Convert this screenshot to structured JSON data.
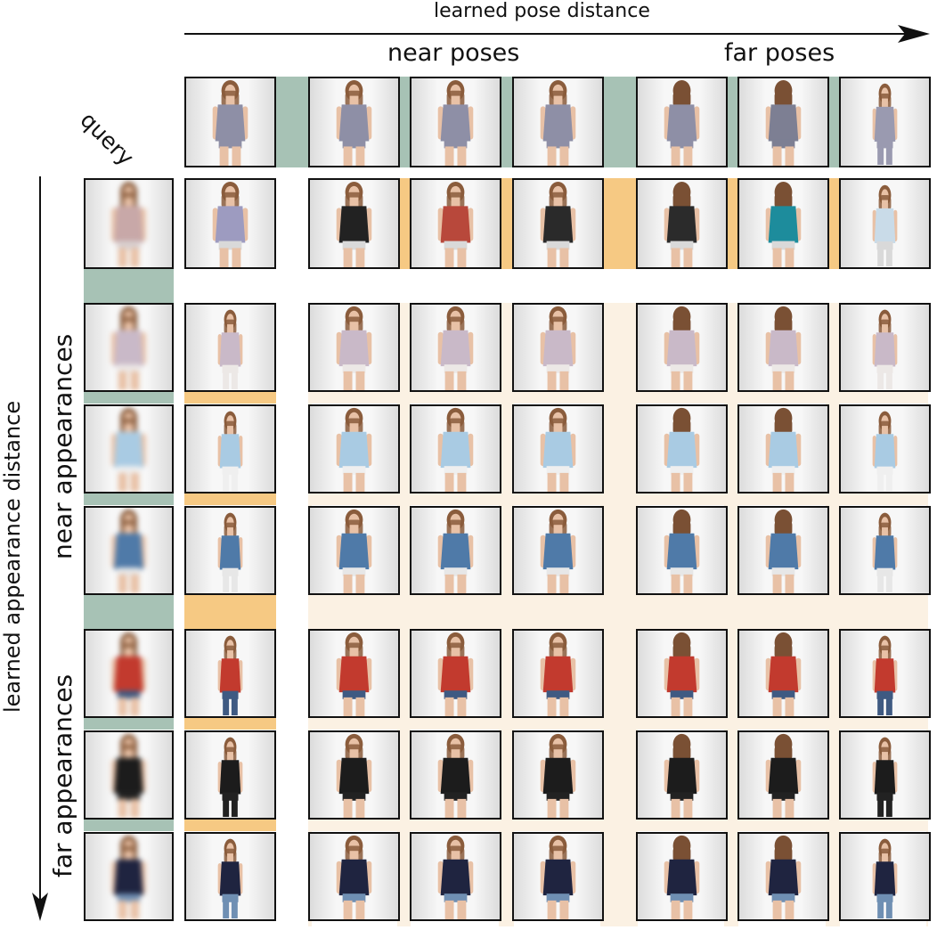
{
  "axis_x_label": "learned pose distance",
  "axis_y_label": "learned appearance distance",
  "near_poses_label": "near poses",
  "far_poses_label": "far poses",
  "near_appearances_label": "near appearances",
  "far_appearances_label": "far appearances",
  "query_label": "query",
  "colors": {
    "query_band": "#a7c2b5",
    "match_band": "#f6c983",
    "region_tint": "#fbf1e3",
    "frame": "#111111"
  },
  "rows": [
    {
      "outfit": "lavender-sleeveless-top",
      "color": "#a7a5c7",
      "legs": "#c8c9d3"
    },
    {
      "outfit": "lilac-lace-top",
      "color": "#c9b9c8",
      "legs": "#ece8e6"
    },
    {
      "outfit": "light-blue-tank",
      "color": "#a9cbe3",
      "legs": "#efefef"
    },
    {
      "outfit": "denim-ombre-tank",
      "color": "#4f7aa8",
      "legs": "#e7e7e7"
    },
    {
      "outfit": "red-tank",
      "color": "#c23a2e",
      "legs": "#3f5a82"
    },
    {
      "outfit": "black-tank-dress",
      "color": "#1c1c1c",
      "legs": "#222222"
    },
    {
      "outfit": "navy-long-sleeve",
      "color": "#1f2440",
      "legs": "#6f8fb3"
    }
  ],
  "top_row_pose_figures": [
    {
      "pose": "front",
      "color": "#8e8fa6"
    },
    {
      "pose": "front",
      "color": "#8e8fa6"
    },
    {
      "pose": "front",
      "color": "#8e8fa6"
    },
    {
      "pose": "front",
      "color": "#8e8fa6"
    },
    {
      "pose": "back",
      "color": "#8e8fa6"
    },
    {
      "pose": "back",
      "color": "#7d7f93"
    },
    {
      "pose": "full",
      "color": "#9a9ab0"
    }
  ],
  "top_row_reference_figures": [
    {
      "pose": "front",
      "color": "#9d9bc0"
    },
    {
      "pose": "front",
      "color": "#222222"
    },
    {
      "pose": "front",
      "color": "#b8483b"
    },
    {
      "pose": "front",
      "color": "#2a2a2a"
    },
    {
      "pose": "back",
      "color": "#2b2b2b"
    },
    {
      "pose": "back",
      "color": "#1d8c9c"
    },
    {
      "pose": "full",
      "color": "#c9dbe8"
    }
  ]
}
